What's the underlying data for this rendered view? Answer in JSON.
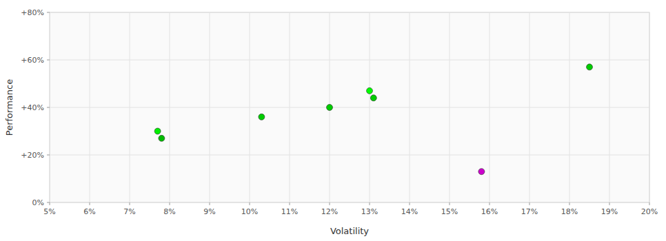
{
  "chart_data": {
    "type": "scatter",
    "x": [
      7.7,
      7.8,
      10.3,
      12.0,
      13.0,
      13.1,
      18.5,
      15.8
    ],
    "values": [
      30,
      27,
      36,
      40,
      47,
      44,
      57,
      13
    ],
    "colors": [
      "#00ee00",
      "#00bb00",
      "#00cc00",
      "#00cc00",
      "#00ff00",
      "#00cc00",
      "#00cc00",
      "#cc00cc"
    ],
    "xlim": [
      5,
      20
    ],
    "ylim": [
      0,
      80
    ],
    "xticks": [
      {
        "value": 5,
        "label": "5%"
      },
      {
        "value": 6,
        "label": "6%"
      },
      {
        "value": 7,
        "label": "7%"
      },
      {
        "value": 8,
        "label": "8%"
      },
      {
        "value": 9,
        "label": "9%"
      },
      {
        "value": 10,
        "label": "10%"
      },
      {
        "value": 11,
        "label": "11%"
      },
      {
        "value": 12,
        "label": "12%"
      },
      {
        "value": 13,
        "label": "13%"
      },
      {
        "value": 14,
        "label": "14%"
      },
      {
        "value": 15,
        "label": "15%"
      },
      {
        "value": 16,
        "label": "16%"
      },
      {
        "value": 17,
        "label": "17%"
      },
      {
        "value": 18,
        "label": "18%"
      },
      {
        "value": 19,
        "label": "19%"
      },
      {
        "value": 20,
        "label": "20%"
      }
    ],
    "yticks": [
      {
        "value": 0,
        "label": "0%"
      },
      {
        "value": 20,
        "label": "+20%"
      },
      {
        "value": 40,
        "label": "+40%"
      },
      {
        "value": 60,
        "label": "+60%"
      },
      {
        "value": 80,
        "label": "+80%"
      }
    ],
    "xlabel": "Volatility",
    "ylabel": "Performance",
    "grid": true
  }
}
